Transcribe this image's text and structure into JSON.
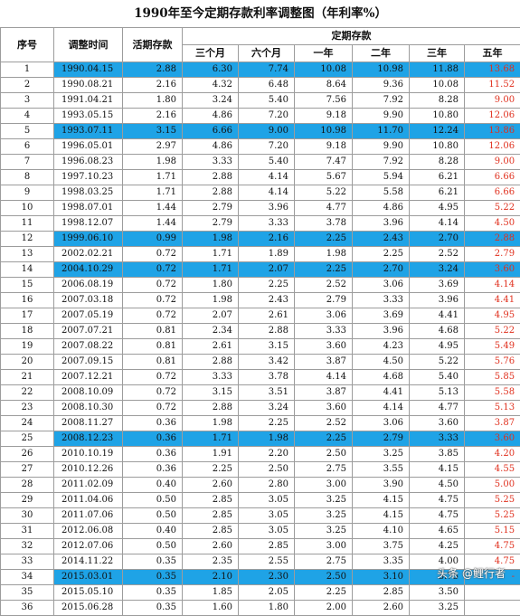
{
  "title": "1990年至今定期存款利率调整图（年利率%）",
  "headers": {
    "seq": "序号",
    "date": "调整时间",
    "demand": "活期存款",
    "fixed": "定期存款",
    "terms": [
      "三个月",
      "六个月",
      "一年",
      "二年",
      "三年",
      "五年"
    ]
  },
  "rows": [
    {
      "n": "1",
      "date": "1990.04.15",
      "demand": "2.88",
      "t": [
        "6.30",
        "7.74",
        "10.08",
        "10.98",
        "11.88",
        "13.68"
      ],
      "hl": true
    },
    {
      "n": "2",
      "date": "1990.08.21",
      "demand": "2.16",
      "t": [
        "4.32",
        "6.48",
        "8.64",
        "9.36",
        "10.08",
        "11.52"
      ],
      "hl": false
    },
    {
      "n": "3",
      "date": "1991.04.21",
      "demand": "1.80",
      "t": [
        "3.24",
        "5.40",
        "7.56",
        "7.92",
        "8.28",
        "9.00"
      ],
      "hl": false
    },
    {
      "n": "4",
      "date": "1993.05.15",
      "demand": "2.16",
      "t": [
        "4.86",
        "7.20",
        "9.18",
        "9.90",
        "10.80",
        "12.06"
      ],
      "hl": false
    },
    {
      "n": "5",
      "date": "1993.07.11",
      "demand": "3.15",
      "t": [
        "6.66",
        "9.00",
        "10.98",
        "11.70",
        "12.24",
        "13.86"
      ],
      "hl": true
    },
    {
      "n": "6",
      "date": "1996.05.01",
      "demand": "2.97",
      "t": [
        "4.86",
        "7.20",
        "9.18",
        "9.90",
        "10.80",
        "12.06"
      ],
      "hl": false
    },
    {
      "n": "7",
      "date": "1996.08.23",
      "demand": "1.98",
      "t": [
        "3.33",
        "5.40",
        "7.47",
        "7.92",
        "8.28",
        "9.00"
      ],
      "hl": false
    },
    {
      "n": "8",
      "date": "1997.10.23",
      "demand": "1.71",
      "t": [
        "2.88",
        "4.14",
        "5.67",
        "5.94",
        "6.21",
        "6.66"
      ],
      "hl": false
    },
    {
      "n": "9",
      "date": "1998.03.25",
      "demand": "1.71",
      "t": [
        "2.88",
        "4.14",
        "5.22",
        "5.58",
        "6.21",
        "6.66"
      ],
      "hl": false
    },
    {
      "n": "10",
      "date": "1998.07.01",
      "demand": "1.44",
      "t": [
        "2.79",
        "3.96",
        "4.77",
        "4.86",
        "4.95",
        "5.22"
      ],
      "hl": false
    },
    {
      "n": "11",
      "date": "1998.12.07",
      "demand": "1.44",
      "t": [
        "2.79",
        "3.33",
        "3.78",
        "3.96",
        "4.14",
        "4.50"
      ],
      "hl": false
    },
    {
      "n": "12",
      "date": "1999.06.10",
      "demand": "0.99",
      "t": [
        "1.98",
        "2.16",
        "2.25",
        "2.43",
        "2.70",
        "2.88"
      ],
      "hl": true
    },
    {
      "n": "13",
      "date": "2002.02.21",
      "demand": "0.72",
      "t": [
        "1.71",
        "1.89",
        "1.98",
        "2.25",
        "2.52",
        "2.79"
      ],
      "hl": false
    },
    {
      "n": "14",
      "date": "2004.10.29",
      "demand": "0.72",
      "t": [
        "1.71",
        "2.07",
        "2.25",
        "2.70",
        "3.24",
        "3.60"
      ],
      "hl": true
    },
    {
      "n": "15",
      "date": "2006.08.19",
      "demand": "0.72",
      "t": [
        "1.80",
        "2.25",
        "2.52",
        "3.06",
        "3.69",
        "4.14"
      ],
      "hl": false
    },
    {
      "n": "16",
      "date": "2007.03.18",
      "demand": "0.72",
      "t": [
        "1.98",
        "2.43",
        "2.79",
        "3.33",
        "3.96",
        "4.41"
      ],
      "hl": false
    },
    {
      "n": "17",
      "date": "2007.05.19",
      "demand": "0.72",
      "t": [
        "2.07",
        "2.61",
        "3.06",
        "3.69",
        "4.41",
        "4.95"
      ],
      "hl": false
    },
    {
      "n": "18",
      "date": "2007.07.21",
      "demand": "0.81",
      "t": [
        "2.34",
        "2.88",
        "3.33",
        "3.96",
        "4.68",
        "5.22"
      ],
      "hl": false
    },
    {
      "n": "19",
      "date": "2007.08.22",
      "demand": "0.81",
      "t": [
        "2.61",
        "3.15",
        "3.60",
        "4.23",
        "4.95",
        "5.49"
      ],
      "hl": false
    },
    {
      "n": "20",
      "date": "2007.09.15",
      "demand": "0.81",
      "t": [
        "2.88",
        "3.42",
        "3.87",
        "4.50",
        "5.22",
        "5.76"
      ],
      "hl": false
    },
    {
      "n": "21",
      "date": "2007.12.21",
      "demand": "0.72",
      "t": [
        "3.33",
        "3.78",
        "4.14",
        "4.68",
        "5.40",
        "5.85"
      ],
      "hl": false
    },
    {
      "n": "22",
      "date": "2008.10.09",
      "demand": "0.72",
      "t": [
        "3.15",
        "3.51",
        "3.87",
        "4.41",
        "5.13",
        "5.58"
      ],
      "hl": false
    },
    {
      "n": "23",
      "date": "2008.10.30",
      "demand": "0.72",
      "t": [
        "2.88",
        "3.24",
        "3.60",
        "4.14",
        "4.77",
        "5.13"
      ],
      "hl": false
    },
    {
      "n": "24",
      "date": "2008.11.27",
      "demand": "0.36",
      "t": [
        "1.98",
        "2.25",
        "2.52",
        "3.06",
        "3.60",
        "3.87"
      ],
      "hl": false
    },
    {
      "n": "25",
      "date": "2008.12.23",
      "demand": "0.36",
      "t": [
        "1.71",
        "1.98",
        "2.25",
        "2.79",
        "3.33",
        "3.60"
      ],
      "hl": true
    },
    {
      "n": "26",
      "date": "2010.10.19",
      "demand": "0.36",
      "t": [
        "1.91",
        "2.20",
        "2.50",
        "3.25",
        "3.85",
        "4.20"
      ],
      "hl": false
    },
    {
      "n": "27",
      "date": "2010.12.26",
      "demand": "0.36",
      "t": [
        "2.25",
        "2.50",
        "2.75",
        "3.55",
        "4.15",
        "4.55"
      ],
      "hl": false
    },
    {
      "n": "28",
      "date": "2011.02.09",
      "demand": "0.40",
      "t": [
        "2.60",
        "2.80",
        "3.00",
        "3.90",
        "4.50",
        "5.00"
      ],
      "hl": false
    },
    {
      "n": "29",
      "date": "2011.04.06",
      "demand": "0.50",
      "t": [
        "2.85",
        "3.05",
        "3.25",
        "4.15",
        "4.75",
        "5.25"
      ],
      "hl": false
    },
    {
      "n": "30",
      "date": "2011.07.06",
      "demand": "0.50",
      "t": [
        "2.85",
        "3.05",
        "3.25",
        "4.15",
        "4.75",
        "5.25"
      ],
      "hl": false
    },
    {
      "n": "31",
      "date": "2012.06.08",
      "demand": "0.40",
      "t": [
        "2.85",
        "3.05",
        "3.25",
        "4.10",
        "4.65",
        "5.15"
      ],
      "hl": false
    },
    {
      "n": "32",
      "date": "2012.07.06",
      "demand": "0.50",
      "t": [
        "2.60",
        "2.85",
        "3.00",
        "3.75",
        "4.25",
        "4.75"
      ],
      "hl": false
    },
    {
      "n": "33",
      "date": "2014.11.22",
      "demand": "0.35",
      "t": [
        "2.35",
        "2.55",
        "2.75",
        "3.35",
        "4.00",
        "4.75"
      ],
      "hl": false
    },
    {
      "n": "34",
      "date": "2015.03.01",
      "demand": "0.35",
      "t": [
        "2.10",
        "2.30",
        "2.50",
        "3.10",
        "3.75",
        "-"
      ],
      "hl": true
    },
    {
      "n": "35",
      "date": "2015.05.10",
      "demand": "0.35",
      "t": [
        "1.85",
        "2.05",
        "2.25",
        "2.85",
        "3.50",
        ""
      ],
      "hl": false
    },
    {
      "n": "36",
      "date": "2015.06.28",
      "demand": "0.35",
      "t": [
        "1.60",
        "1.80",
        "2.00",
        "2.60",
        "3.25",
        ""
      ],
      "hl": false
    }
  ],
  "watermark": "头条 @鲤行者",
  "colors": {
    "highlight": "#1fa3e6",
    "five_year_text": "#e0301e",
    "grid": "#9c9c9c"
  }
}
